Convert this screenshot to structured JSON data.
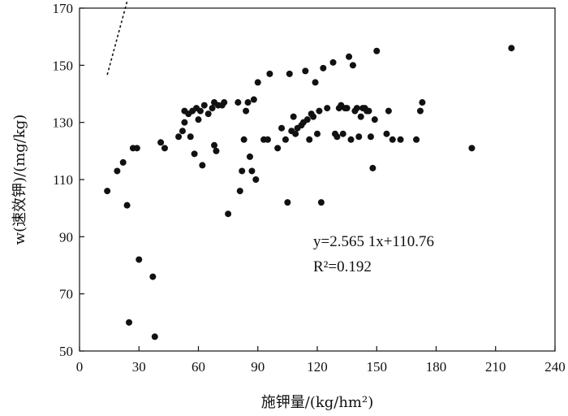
{
  "chart_data": {
    "type": "scatter",
    "title": "",
    "xlabel": "施钾量/(kg/hm²)",
    "ylabel": "w(速效钾)/(mg/kg)",
    "xlim": [
      0,
      240
    ],
    "ylim": [
      50,
      170
    ],
    "x_ticks": [
      0,
      30,
      60,
      90,
      120,
      150,
      180,
      210,
      240
    ],
    "y_ticks": [
      50,
      70,
      90,
      110,
      130,
      150,
      170
    ],
    "grid": false,
    "marker_color": "#111111",
    "trendline": {
      "slope": 2.5651,
      "intercept": 110.76,
      "x_range": [
        14,
        218
      ],
      "style": "dotted",
      "color": "#111111"
    },
    "annotations": {
      "equation": "y=2.565 1x+110.76",
      "r_squared": "R²=0.192"
    },
    "points": [
      [
        14,
        106
      ],
      [
        19,
        113
      ],
      [
        22,
        116
      ],
      [
        24,
        101
      ],
      [
        27,
        121
      ],
      [
        29,
        121
      ],
      [
        30,
        82
      ],
      [
        25,
        60
      ],
      [
        37,
        76
      ],
      [
        38,
        55
      ],
      [
        41,
        123
      ],
      [
        43,
        121
      ],
      [
        50,
        125
      ],
      [
        52,
        127
      ],
      [
        53,
        130
      ],
      [
        53,
        134
      ],
      [
        55,
        133
      ],
      [
        56,
        125
      ],
      [
        57,
        134
      ],
      [
        58,
        119
      ],
      [
        59,
        135
      ],
      [
        60,
        131
      ],
      [
        61,
        134
      ],
      [
        62,
        115
      ],
      [
        63,
        136
      ],
      [
        65,
        133
      ],
      [
        67,
        135
      ],
      [
        68,
        137
      ],
      [
        68,
        122
      ],
      [
        69,
        120
      ],
      [
        70,
        136
      ],
      [
        72,
        136
      ],
      [
        73,
        137
      ],
      [
        75,
        98
      ],
      [
        80,
        137
      ],
      [
        81,
        106
      ],
      [
        82,
        113
      ],
      [
        83,
        124
      ],
      [
        84,
        134
      ],
      [
        85,
        137
      ],
      [
        86,
        118
      ],
      [
        87,
        113
      ],
      [
        88,
        138
      ],
      [
        89,
        110
      ],
      [
        90,
        144
      ],
      [
        93,
        124
      ],
      [
        95,
        124
      ],
      [
        96,
        147
      ],
      [
        100,
        121
      ],
      [
        102,
        128
      ],
      [
        104,
        124
      ],
      [
        105,
        102
      ],
      [
        106,
        147
      ],
      [
        107,
        127
      ],
      [
        108,
        132
      ],
      [
        109,
        126
      ],
      [
        110,
        128
      ],
      [
        112,
        129
      ],
      [
        113,
        130
      ],
      [
        114,
        148
      ],
      [
        115,
        131
      ],
      [
        116,
        124
      ],
      [
        117,
        133
      ],
      [
        118,
        132
      ],
      [
        119,
        144
      ],
      [
        120,
        126
      ],
      [
        121,
        134
      ],
      [
        122,
        102
      ],
      [
        123,
        149
      ],
      [
        125,
        135
      ],
      [
        128,
        151
      ],
      [
        129,
        126
      ],
      [
        130,
        125
      ],
      [
        131,
        135
      ],
      [
        132,
        136
      ],
      [
        133,
        126
      ],
      [
        134,
        135
      ],
      [
        135,
        135
      ],
      [
        136,
        153
      ],
      [
        137,
        124
      ],
      [
        138,
        150
      ],
      [
        139,
        134
      ],
      [
        140,
        135
      ],
      [
        141,
        125
      ],
      [
        142,
        132
      ],
      [
        143,
        135
      ],
      [
        144,
        135
      ],
      [
        145,
        134
      ],
      [
        146,
        134
      ],
      [
        147,
        125
      ],
      [
        148,
        114
      ],
      [
        149,
        131
      ],
      [
        150,
        155
      ],
      [
        155,
        126
      ],
      [
        156,
        134
      ],
      [
        158,
        124
      ],
      [
        162,
        124
      ],
      [
        170,
        124
      ],
      [
        172,
        134
      ],
      [
        173,
        137
      ],
      [
        198,
        121
      ],
      [
        218,
        156
      ]
    ]
  }
}
